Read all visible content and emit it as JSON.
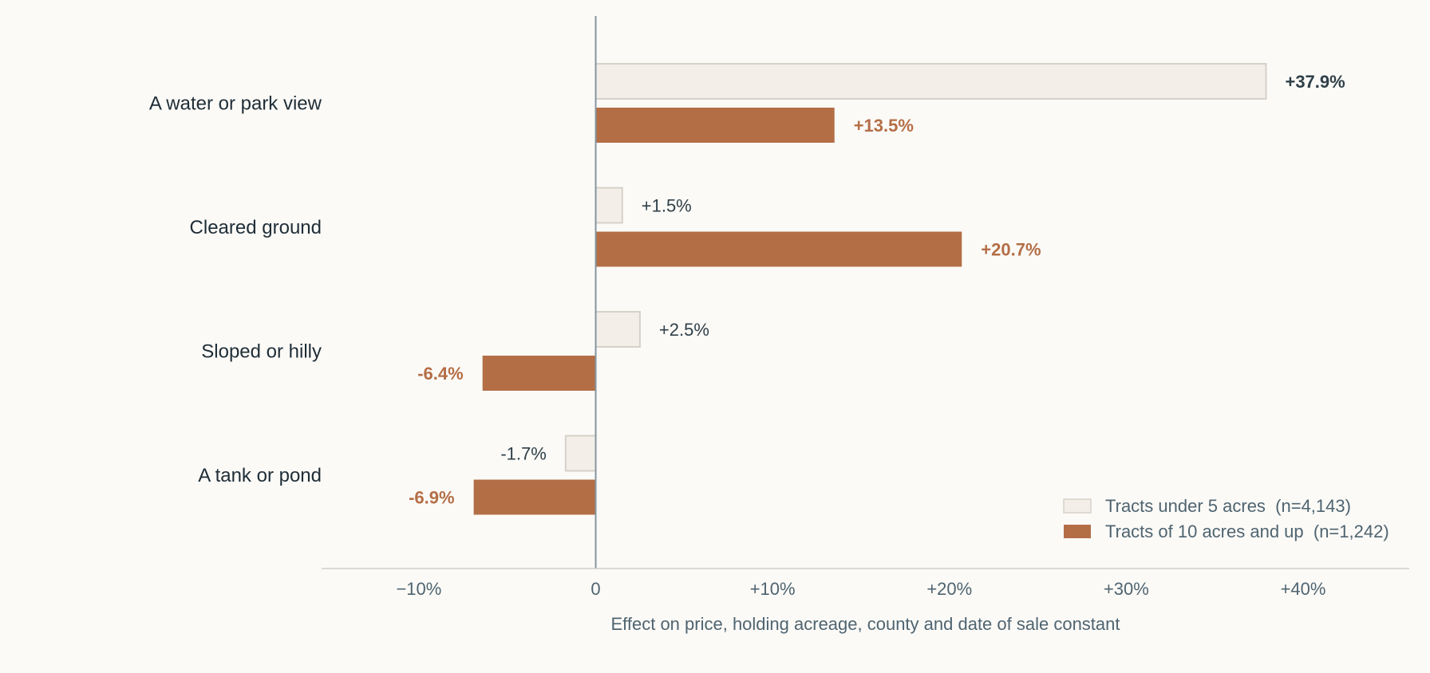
{
  "chart_data": {
    "type": "bar",
    "orientation": "horizontal",
    "categories": [
      "A water or park view",
      "Cleared ground",
      "Sloped or hilly",
      "A tank or pond"
    ],
    "series": [
      {
        "name": "Tracts under 5 acres  (n=4,143)",
        "values": [
          37.9,
          1.5,
          2.5,
          -1.7
        ],
        "labels": [
          "+37.9%",
          "+1.5%",
          "+2.5%",
          "-1.7%"
        ],
        "color": "#f3efe8",
        "stroke": "#d6d1c8"
      },
      {
        "name": "Tracts of 10 acres and up  (n=1,242)",
        "values": [
          13.5,
          20.7,
          -6.4,
          -6.9
        ],
        "labels": [
          "+13.5%",
          "+20.7%",
          "-6.4%",
          "-6.9%"
        ],
        "color": "#b46e46",
        "stroke": "#b46e46"
      }
    ],
    "xlim": [
      -15.5,
      46
    ],
    "xticks": [
      -10,
      0,
      10,
      20,
      30,
      40
    ],
    "xtick_labels": [
      "−10%",
      "0",
      "+10%",
      "+20%",
      "+30%",
      "+40%"
    ],
    "xlabel": "Effect on price, holding acreage, county and date of sale constant",
    "legend_position": "bottom-right",
    "grid": false
  }
}
